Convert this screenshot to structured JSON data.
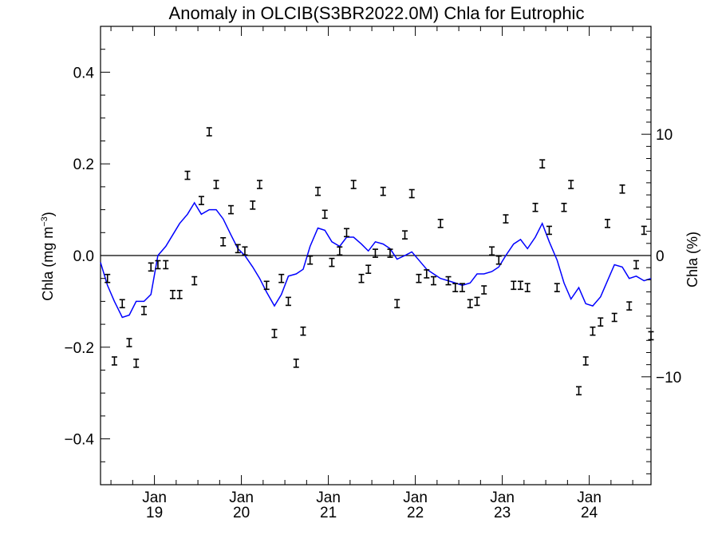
{
  "chart_data": {
    "type": "line",
    "title": "Anomaly in OLCIB(S3BR2022.0M) Chla for Eutrophic",
    "ylabel_left": "Chla (mg m⁻³)",
    "ylabel_left_main": "Chla (mg m",
    "ylabel_left_sup": "−3",
    "ylabel_left_close": ")",
    "ylabel_right": "Chla (%)",
    "ylim_left": [
      -0.5,
      0.5
    ],
    "ylim_right": [
      -18.9,
      18.9
    ],
    "xlim": [
      2018.38,
      2024.71
    ],
    "yticks_left": [
      {
        "value": -0.4,
        "label": "−0.4"
      },
      {
        "value": -0.2,
        "label": "−0.2"
      },
      {
        "value": 0.0,
        "label": "0.0"
      },
      {
        "value": 0.2,
        "label": "0.2"
      },
      {
        "value": 0.4,
        "label": "0.4"
      }
    ],
    "yticks_right": [
      {
        "value": -10,
        "label": "−10"
      },
      {
        "value": 0,
        "label": "0"
      },
      {
        "value": 10,
        "label": "10"
      }
    ],
    "xticks": [
      {
        "value": 2019.0,
        "month": "Jan",
        "year": "19"
      },
      {
        "value": 2020.0,
        "month": "Jan",
        "year": "20"
      },
      {
        "value": 2021.0,
        "month": "Jan",
        "year": "21"
      },
      {
        "value": 2022.0,
        "month": "Jan",
        "year": "22"
      },
      {
        "value": 2023.0,
        "month": "Jan",
        "year": "23"
      },
      {
        "value": 2024.0,
        "month": "Jan",
        "year": "24"
      }
    ],
    "zero_line": 0,
    "series": [
      {
        "kind": "line",
        "color": "#0000ff",
        "x": [
          2018.38,
          2018.46,
          2018.54,
          2018.63,
          2018.71,
          2018.79,
          2018.88,
          2018.96,
          2019.04,
          2019.13,
          2019.21,
          2019.29,
          2019.38,
          2019.46,
          2019.54,
          2019.63,
          2019.71,
          2019.79,
          2019.88,
          2019.96,
          2020.04,
          2020.13,
          2020.21,
          2020.29,
          2020.38,
          2020.46,
          2020.54,
          2020.63,
          2020.71,
          2020.79,
          2020.88,
          2020.96,
          2021.04,
          2021.13,
          2021.21,
          2021.29,
          2021.38,
          2021.46,
          2021.54,
          2021.63,
          2021.71,
          2021.79,
          2021.88,
          2021.96,
          2022.04,
          2022.13,
          2022.21,
          2022.29,
          2022.38,
          2022.46,
          2022.54,
          2022.63,
          2022.71,
          2022.79,
          2022.88,
          2022.96,
          2023.04,
          2023.13,
          2023.21,
          2023.29,
          2023.38,
          2023.46,
          2023.54,
          2023.63,
          2023.71,
          2023.79,
          2023.88,
          2023.96,
          2024.04,
          2024.13,
          2024.21,
          2024.29,
          2024.38,
          2024.46,
          2024.54,
          2024.63,
          2024.71
        ],
        "y": [
          -0.015,
          -0.065,
          -0.1,
          -0.135,
          -0.13,
          -0.1,
          -0.1,
          -0.085,
          0.0,
          0.02,
          0.045,
          0.07,
          0.09,
          0.115,
          0.09,
          0.1,
          0.1,
          0.08,
          0.045,
          0.015,
          0.0,
          -0.025,
          -0.05,
          -0.08,
          -0.11,
          -0.085,
          -0.045,
          -0.04,
          -0.03,
          0.02,
          0.06,
          0.055,
          0.03,
          0.02,
          0.04,
          0.04,
          0.025,
          0.01,
          0.03,
          0.025,
          0.015,
          -0.008,
          0.0,
          0.008,
          -0.01,
          -0.03,
          -0.04,
          -0.05,
          -0.055,
          -0.06,
          -0.065,
          -0.06,
          -0.04,
          -0.04,
          -0.035,
          -0.025,
          0.0,
          0.025,
          0.035,
          0.015,
          0.04,
          0.07,
          0.03,
          -0.01,
          -0.06,
          -0.095,
          -0.07,
          -0.105,
          -0.11,
          -0.09,
          -0.055,
          -0.02,
          -0.025,
          -0.05,
          -0.045,
          -0.055,
          -0.05
        ]
      },
      {
        "kind": "points",
        "marker": "I",
        "color": "#000000",
        "x": [
          2018.46,
          2018.54,
          2018.63,
          2018.71,
          2018.79,
          2018.88,
          2018.96,
          2019.04,
          2019.13,
          2019.21,
          2019.29,
          2019.38,
          2019.46,
          2019.54,
          2019.63,
          2019.71,
          2019.79,
          2019.88,
          2019.96,
          2020.04,
          2020.13,
          2020.21,
          2020.29,
          2020.38,
          2020.46,
          2020.54,
          2020.63,
          2020.71,
          2020.79,
          2020.88,
          2020.96,
          2021.04,
          2021.13,
          2021.21,
          2021.29,
          2021.38,
          2021.46,
          2021.54,
          2021.63,
          2021.71,
          2021.79,
          2021.88,
          2021.96,
          2022.04,
          2022.13,
          2022.21,
          2022.29,
          2022.38,
          2022.46,
          2022.54,
          2022.63,
          2022.71,
          2022.79,
          2022.88,
          2022.96,
          2023.04,
          2023.13,
          2023.21,
          2023.29,
          2023.38,
          2023.46,
          2023.54,
          2023.63,
          2023.71,
          2023.79,
          2023.88,
          2023.96,
          2024.04,
          2024.13,
          2024.21,
          2024.29,
          2024.38,
          2024.46,
          2024.54,
          2024.63,
          2024.71
        ],
        "y": [
          -0.05,
          -0.23,
          -0.105,
          -0.19,
          -0.235,
          -0.12,
          -0.025,
          -0.02,
          -0.02,
          -0.085,
          -0.085,
          0.175,
          -0.055,
          0.12,
          0.27,
          0.155,
          0.03,
          0.1,
          0.015,
          0.01,
          0.11,
          0.155,
          -0.065,
          -0.17,
          -0.05,
          -0.1,
          -0.235,
          -0.165,
          -0.01,
          0.14,
          0.09,
          -0.015,
          0.01,
          0.05,
          0.155,
          -0.05,
          -0.03,
          0.005,
          0.14,
          0.005,
          -0.105,
          0.045,
          0.135,
          -0.05,
          -0.04,
          -0.055,
          0.07,
          -0.055,
          -0.07,
          -0.07,
          -0.105,
          -0.1,
          -0.075,
          0.01,
          -0.01,
          0.08,
          -0.065,
          -0.065,
          -0.07,
          0.105,
          0.2,
          0.055,
          -0.07,
          0.105,
          0.155,
          -0.295,
          -0.23,
          -0.165,
          -0.145,
          0.07,
          -0.135,
          0.145,
          -0.11,
          -0.02,
          0.055,
          -0.175
        ]
      }
    ]
  }
}
